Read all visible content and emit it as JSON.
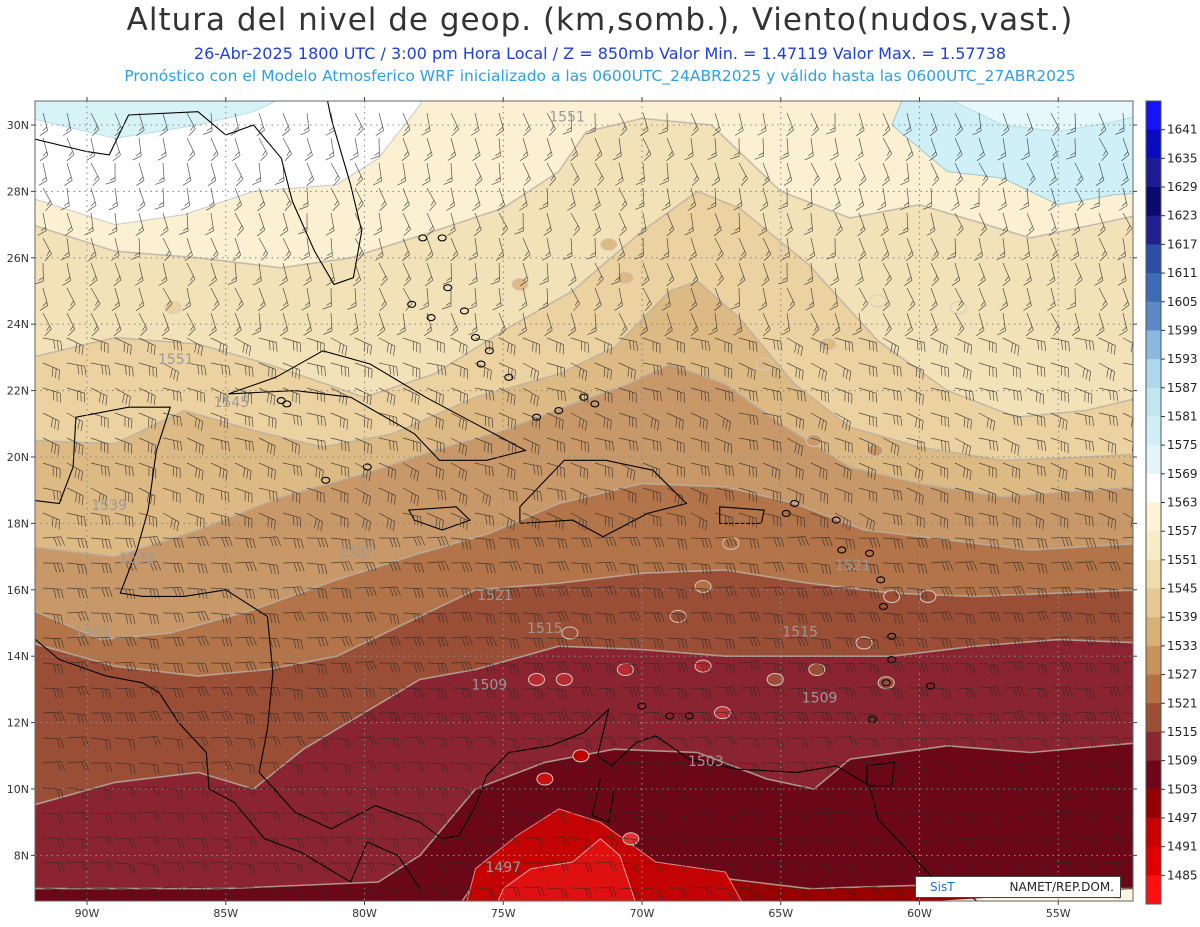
{
  "header": {
    "title": "Altura del nivel de geop. (km,somb.), Viento(nudos,vast.)",
    "subtitle1": "26-Abr-2025   1800 UTC / 3:00 pm Hora Local / Z = 850mb     Valor Min. = 1.47119   Valor Max. = 1.57738",
    "subtitle2": "Pronóstico con el Modelo Atmosferico WRF inicializado a las 0600UTC_24ABR2025 y válido hasta las  0600UTC_27ABR2025"
  },
  "map": {
    "lat_labels": [
      "30N",
      "28N",
      "26N",
      "24N",
      "22N",
      "20N",
      "18N",
      "16N",
      "14N",
      "12N",
      "10N",
      "8N"
    ],
    "lon_labels": [
      "90W",
      "85W",
      "80W",
      "75W",
      "70W",
      "65W",
      "60W",
      "55W"
    ],
    "contour_labels": [
      {
        "text": "1551",
        "lon": -72.7,
        "lat": 30.1
      },
      {
        "text": "1551",
        "lon": -86.8,
        "lat": 22.8
      },
      {
        "text": "1545",
        "lon": -84.8,
        "lat": 21.5
      },
      {
        "text": "1539",
        "lon": -89.2,
        "lat": 18.4
      },
      {
        "text": "1533",
        "lon": -88.2,
        "lat": 16.8
      },
      {
        "text": "1527",
        "lon": -80.3,
        "lat": 17.0
      },
      {
        "text": "1521",
        "lon": -89.8,
        "lat": 14.6
      },
      {
        "text": "1521",
        "lon": -75.3,
        "lat": 15.7
      },
      {
        "text": "1521",
        "lon": -62.4,
        "lat": 16.6
      },
      {
        "text": "1515",
        "lon": -73.5,
        "lat": 14.7
      },
      {
        "text": "1515",
        "lon": -64.3,
        "lat": 14.6
      },
      {
        "text": "1509",
        "lon": -75.5,
        "lat": 13.0
      },
      {
        "text": "1509",
        "lon": -63.6,
        "lat": 12.6
      },
      {
        "text": "1503",
        "lon": -67.7,
        "lat": 10.7
      },
      {
        "text": "1497",
        "lon": -75.0,
        "lat": 7.5
      }
    ]
  },
  "colorbar": {
    "labels": [
      "1641",
      "1635",
      "1629",
      "1623",
      "1617",
      "1611",
      "1605",
      "1599",
      "1593",
      "1587",
      "1581",
      "1575",
      "1569",
      "1563",
      "1557",
      "1551",
      "1545",
      "1539",
      "1533",
      "1527",
      "1521",
      "1515",
      "1509",
      "1503",
      "1497",
      "1491",
      "1485"
    ],
    "colors": [
      "#1414f8",
      "#0a0abe",
      "#1c1c94",
      "#0a0a6e",
      "#202090",
      "#2c4ea6",
      "#3c6cb8",
      "#5c88c8",
      "#8ab8e0",
      "#aed8ee",
      "#c0e6f2",
      "#d2eef6",
      "#e2f6fa",
      "#ffffff",
      "#fdf3d6",
      "#f8ecc6",
      "#f0dcaa",
      "#e6c890",
      "#d8b074",
      "#c8925a",
      "#b47040",
      "#9c4e32",
      "#88282e",
      "#6c0618",
      "#960000",
      "#c80000",
      "#e00000",
      "#ff1010"
    ]
  },
  "credits": {
    "org": "SisT",
    "office": "NAMET/REP.DOM."
  }
}
